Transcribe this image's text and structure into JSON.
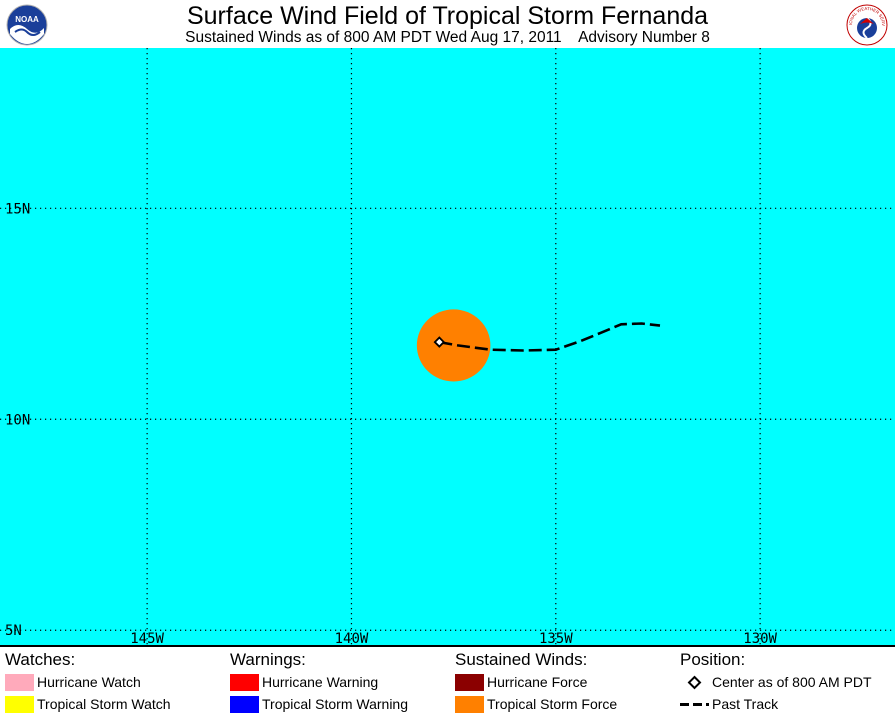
{
  "header": {
    "title": "Surface Wind Field of Tropical Storm Fernanda",
    "subtitle_left": "Sustained Winds as of 800 AM PDT Wed Aug 17, 2011",
    "subtitle_right": "Advisory Number 8",
    "left_logo_icon": "noaa-logo-icon",
    "left_logo_text": "NOAA",
    "right_logo_icon": "nws-logo-icon",
    "right_logo_text": "NATIONAL WEATHER SERVICE"
  },
  "map": {
    "ocean_color": "#00ffff",
    "lon_range": [
      -148.6,
      -126.7
    ],
    "lat_range": [
      4.65,
      18.8
    ],
    "lat_lines": [
      5,
      10,
      15
    ],
    "lon_lines": [
      -145,
      -140,
      -135,
      -130
    ],
    "lat_labels": [
      {
        "lat": 15,
        "text": "15N"
      },
      {
        "lat": 10,
        "text": "10N"
      },
      {
        "lat": 5,
        "text": "5N"
      }
    ],
    "lon_labels": [
      {
        "lon": -145,
        "text": "145W"
      },
      {
        "lon": -140,
        "text": "140W"
      },
      {
        "lon": -135,
        "text": "135W"
      },
      {
        "lon": -130,
        "text": "130W"
      }
    ],
    "storm_center": {
      "lon": -137.85,
      "lat": 11.83
    },
    "tropical_storm_force_field": {
      "center_lon": -137.5,
      "center_lat": 11.75,
      "radius_deg": 0.9,
      "color": "#ff8000"
    },
    "past_track": [
      {
        "lon": -137.85,
        "lat": 11.83
      },
      {
        "lon": -137.4,
        "lat": 11.75
      },
      {
        "lon": -136.6,
        "lat": 11.65
      },
      {
        "lon": -135.8,
        "lat": 11.63
      },
      {
        "lon": -135.0,
        "lat": 11.65
      },
      {
        "lon": -134.4,
        "lat": 11.85
      },
      {
        "lon": -133.9,
        "lat": 12.05
      },
      {
        "lon": -133.4,
        "lat": 12.25
      },
      {
        "lon": -132.9,
        "lat": 12.27
      },
      {
        "lon": -132.45,
        "lat": 12.22
      }
    ]
  },
  "legend": {
    "watches": {
      "heading": "Watches:",
      "items": [
        {
          "label": "Hurricane Watch",
          "color": "#ffaabb"
        },
        {
          "label": "Tropical Storm Watch",
          "color": "#ffff00"
        }
      ]
    },
    "warnings": {
      "heading": "Warnings:",
      "items": [
        {
          "label": "Hurricane Warning",
          "color": "#ff0000"
        },
        {
          "label": "Tropical Storm Warning",
          "color": "#0000ff"
        }
      ]
    },
    "winds": {
      "heading": "Sustained Winds:",
      "items": [
        {
          "label": "Hurricane Force",
          "color": "#8b0000"
        },
        {
          "label": "Tropical Storm Force",
          "color": "#ff8000"
        }
      ]
    },
    "position": {
      "heading": "Position:",
      "items": [
        {
          "label": "Center as of 800 AM PDT",
          "icon": "diamond-marker-icon"
        },
        {
          "label": "Past Track",
          "icon": "dashed-line-icon"
        }
      ]
    }
  }
}
